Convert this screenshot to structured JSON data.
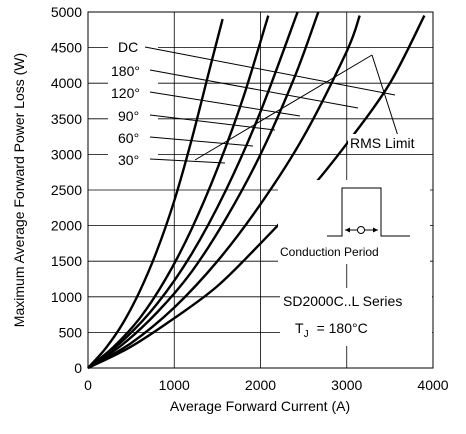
{
  "chart_data": {
    "type": "line",
    "title": "",
    "xlabel": "Average Forward Current (A)",
    "ylabel": "Maximum Average Forward Power Loss (W)",
    "xlim": [
      0,
      4000
    ],
    "ylim": [
      0,
      5000
    ],
    "x_ticks": [
      "0",
      "1000",
      "2000",
      "3000",
      "4000"
    ],
    "y_ticks": [
      "0",
      "500",
      "1000",
      "1500",
      "2000",
      "2500",
      "3000",
      "3500",
      "4000",
      "4500",
      "5000"
    ],
    "grid": true,
    "series": [
      {
        "name": "30°",
        "x": [
          0,
          200,
          400,
          600,
          800,
          1000,
          1200,
          1400,
          1560
        ],
        "y": [
          0,
          270,
          620,
          1080,
          1650,
          2350,
          3200,
          4150,
          4900
        ]
      },
      {
        "name": "60°",
        "x": [
          0,
          300,
          600,
          900,
          1200,
          1500,
          1800,
          2090
        ],
        "y": [
          0,
          300,
          700,
          1250,
          1950,
          2800,
          3800,
          4950
        ]
      },
      {
        "name": "90°",
        "x": [
          0,
          400,
          800,
          1200,
          1600,
          2000,
          2430
        ],
        "y": [
          0,
          380,
          900,
          1600,
          2500,
          3600,
          5000
        ]
      },
      {
        "name": "120°",
        "x": [
          0,
          400,
          800,
          1200,
          1600,
          2000,
          2400,
          2670
        ],
        "y": [
          0,
          330,
          780,
          1350,
          2100,
          3000,
          4100,
          5000
        ]
      },
      {
        "name": "180°",
        "x": [
          0,
          500,
          1000,
          1500,
          2000,
          2500,
          3000,
          3150
        ],
        "y": [
          0,
          350,
          850,
          1500,
          2300,
          3250,
          4450,
          4950
        ]
      },
      {
        "name": "DC",
        "x": [
          0,
          500,
          1000,
          1500,
          2000,
          2500,
          3000,
          3500,
          3900
        ],
        "y": [
          0,
          300,
          700,
          1150,
          1750,
          2400,
          3150,
          4000,
          4950
        ]
      }
    ],
    "annotations": {
      "curve_labels": [
        "DC",
        "180°",
        "120°",
        "90°",
        "60°",
        "30°"
      ],
      "rms_limit": "RMS Limit",
      "conduction_period": "Conduction Period",
      "series_label": "SD2000C..L Series",
      "tj_symbol": "T",
      "tj_subscript": "J",
      "tj_value": "= 180°C"
    },
    "colors": {
      "curves": "#000000",
      "grid": "#000000",
      "background": "#ffffff"
    }
  }
}
